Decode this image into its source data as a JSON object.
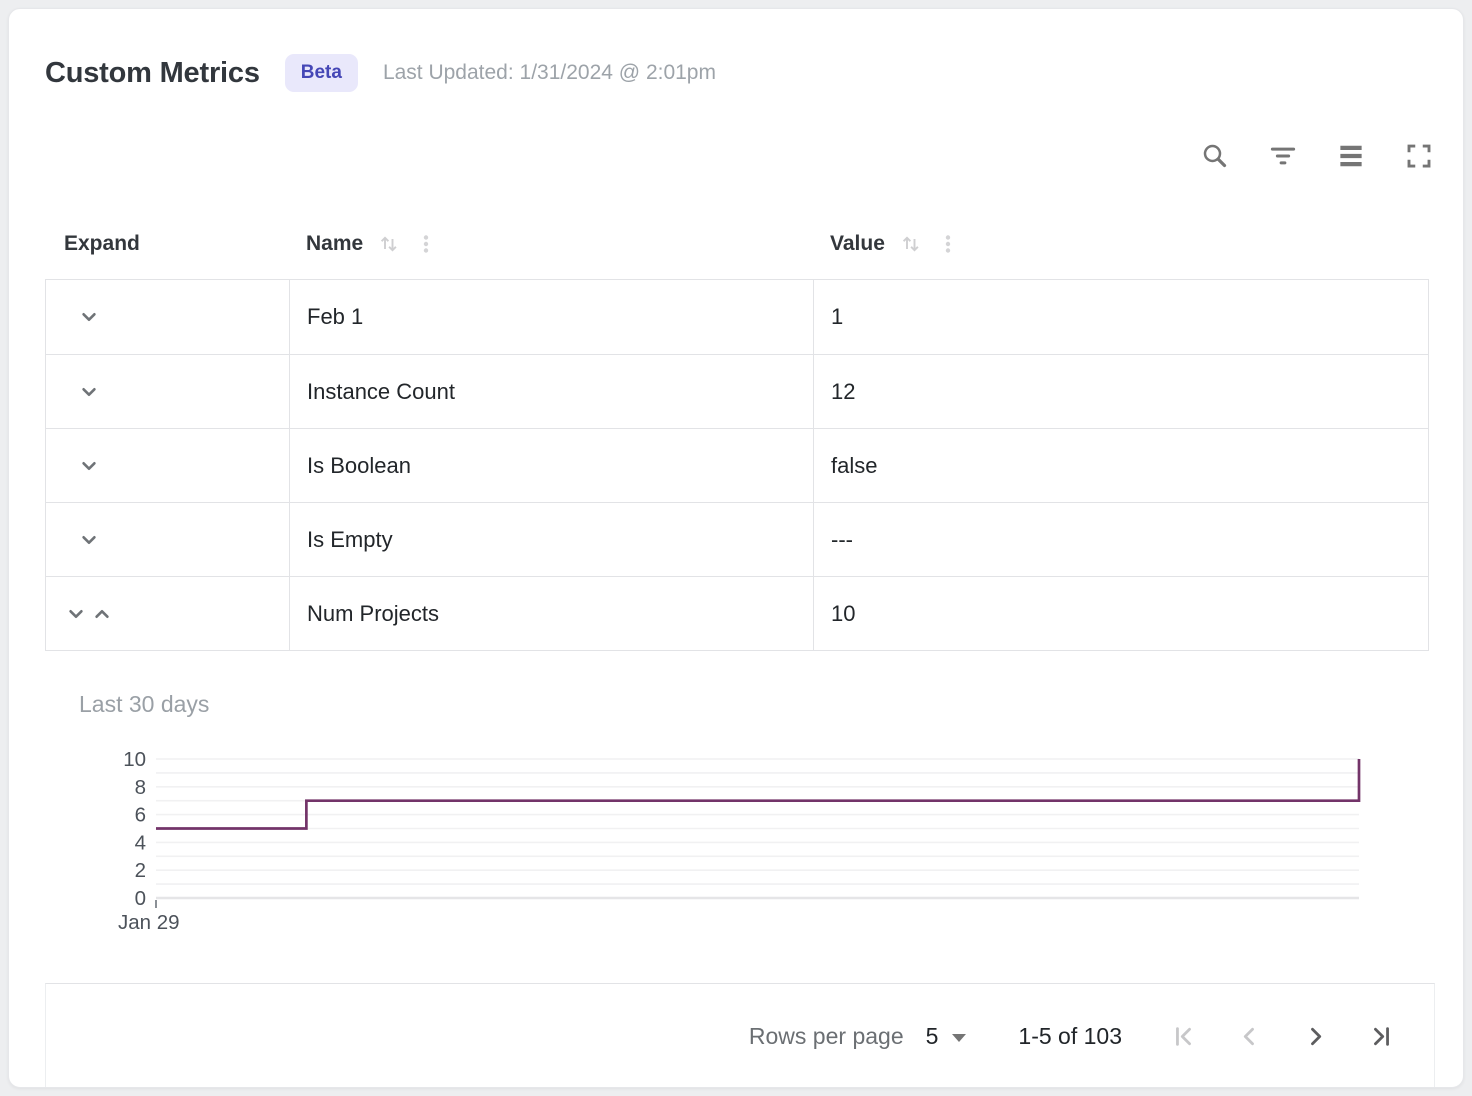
{
  "header": {
    "title": "Custom Metrics",
    "badge": "Beta",
    "last_updated": "Last Updated: 1/31/2024 @ 2:01pm"
  },
  "toolbar": {
    "icons": [
      "search",
      "filter",
      "density",
      "fullscreen"
    ]
  },
  "table": {
    "columns": [
      {
        "label": "Expand",
        "sortable": false
      },
      {
        "label": "Name",
        "sortable": true
      },
      {
        "label": "Value",
        "sortable": true
      }
    ],
    "rows": [
      {
        "name": "Feb 1",
        "value": "1",
        "expanded": false
      },
      {
        "name": "Instance Count",
        "value": "12",
        "expanded": false
      },
      {
        "name": "Is Boolean",
        "value": "false",
        "expanded": false
      },
      {
        "name": "Is Empty",
        "value": "---",
        "expanded": false
      },
      {
        "name": "Num Projects",
        "value": "10",
        "expanded": true
      }
    ]
  },
  "detail_panel": {
    "title": "Last 30 days"
  },
  "chart_data": {
    "type": "line",
    "subtype": "step",
    "title": "Last 30 days",
    "series": [
      {
        "name": "Num Projects",
        "points": [
          [
            0,
            5
          ],
          [
            3.75,
            5
          ],
          [
            3.75,
            7
          ],
          [
            30,
            7
          ],
          [
            30,
            10
          ]
        ]
      }
    ],
    "xlim": [
      0,
      30
    ],
    "ylim": [
      0,
      10
    ],
    "yticks": [
      0,
      2,
      4,
      6,
      8,
      10
    ],
    "grid_step": 1,
    "xtick_labels": [
      "Jan 29"
    ],
    "xlabel": "",
    "ylabel": "",
    "grid": "on",
    "legend": "none",
    "line_color": "#733469"
  },
  "footer": {
    "rows_per_page_label": "Rows per page",
    "rows_per_page_value": "5",
    "range_label": "1-5 of 103",
    "buttons": {
      "first_disabled": true,
      "prev_disabled": true,
      "next_disabled": false,
      "last_disabled": false
    }
  },
  "colors": {
    "accent": "#4547b6",
    "badge_bg": "#e9e8fb",
    "line": "#733469",
    "border": "#e2e3e6",
    "grid_line": "#f1f1f2",
    "muted_text": "#9aa0a6"
  }
}
